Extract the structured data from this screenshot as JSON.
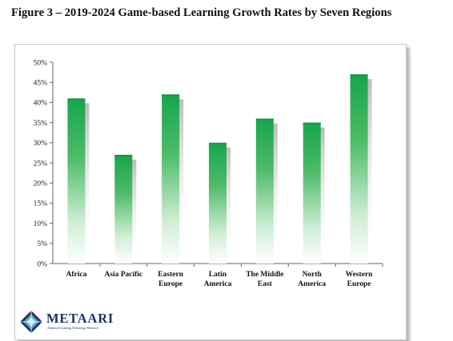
{
  "figure_title": "Figure 3 – 2019-2024 Game-based Learning Growth Rates by Seven Regions",
  "logo": {
    "name": "METAARI",
    "tagline": "Advanced Learning Technology Research"
  },
  "colors": {
    "bar_top": "#16a64b",
    "bar_bottom": "#ffffff",
    "axis": "#666666",
    "logo": "#1f2f66"
  },
  "chart_data": {
    "type": "bar",
    "categories": [
      [
        "Africa"
      ],
      [
        "Asia Pacific"
      ],
      [
        "Eastern",
        "Europe"
      ],
      [
        "Latin",
        "America"
      ],
      [
        "The Middle",
        "East"
      ],
      [
        "North",
        "America"
      ],
      [
        "Western",
        "Europe"
      ]
    ],
    "values": [
      41,
      27,
      42,
      30,
      36,
      35,
      47
    ],
    "yticks": [
      "0%",
      "5%",
      "10%",
      "15%",
      "20%",
      "25%",
      "30%",
      "35%",
      "40%",
      "45%",
      "50%"
    ],
    "ylim": [
      0,
      50
    ],
    "grid": false,
    "legend": "none"
  }
}
